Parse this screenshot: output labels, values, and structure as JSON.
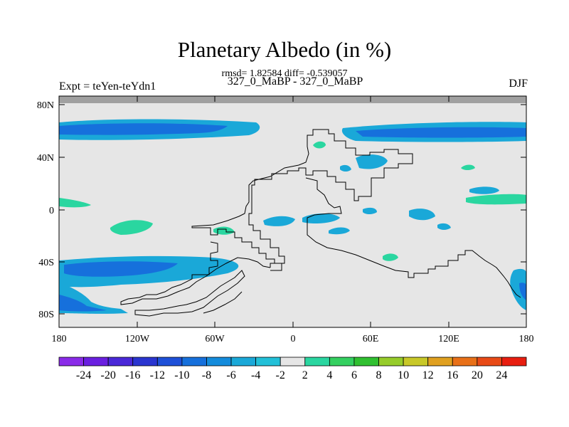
{
  "title": "Planetary Albedo (in %)",
  "stats": "rmsd= 1.82584 diff= -0.539057",
  "subtitle": "327_0_MaBP - 327_0_MaBP",
  "left_label": "Expt = teYen-teYdn1",
  "right_label": "DJF",
  "lat_ticks": [
    "80N",
    "40N",
    "0",
    "40S",
    "80S"
  ],
  "lon_ticks": [
    "180",
    "120W",
    "60W",
    "0",
    "60E",
    "120E",
    "180"
  ],
  "colorbar": {
    "labels": [
      "-24",
      "-20",
      "-16",
      "-12",
      "-10",
      "-8",
      "-6",
      "-4",
      "-2",
      "2",
      "4",
      "6",
      "8",
      "10",
      "12",
      "16",
      "20",
      "24"
    ],
    "colors": [
      "#8a2be8",
      "#6a1fe0",
      "#4a28d8",
      "#2a35d0",
      "#1e50d8",
      "#1670dc",
      "#148cdc",
      "#1aa8d8",
      "#22c0d8",
      "#e6e6e6",
      "#2ad6a0",
      "#34d060",
      "#30c030",
      "#96cc2a",
      "#c8c828",
      "#e0a020",
      "#e87018",
      "#e84a16",
      "#e81e10"
    ]
  }
}
